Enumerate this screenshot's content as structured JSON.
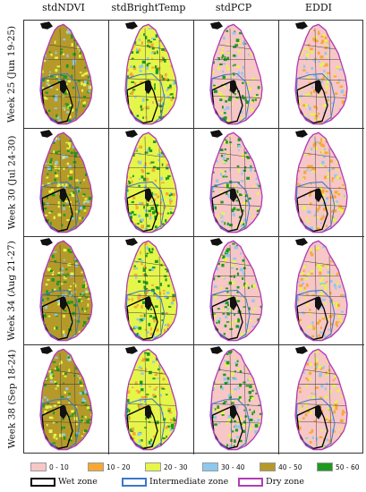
{
  "columns": [
    "stdNDVI",
    "stdBrightTemp",
    "stdPCP",
    "EDDI"
  ],
  "rows": [
    "Week 25 (Jun 19-25)",
    "Week 30 (Jul 24-30)",
    "Week 34 (Aug 21-27)",
    "Week 38 (Sep 18-24)"
  ],
  "legend": {
    "classes": [
      {
        "label": "0 - 10",
        "color": "#f7c6c6"
      },
      {
        "label": "10 - 20",
        "color": "#f7a733"
      },
      {
        "label": "20 - 30",
        "color": "#e6f54a"
      },
      {
        "label": "30 - 40",
        "color": "#8ec8ef"
      },
      {
        "label": "40 - 50",
        "color": "#b59a2a"
      },
      {
        "label": "50 - 60",
        "color": "#1f9a1f"
      }
    ],
    "zones": [
      {
        "label": "Wet zone",
        "color": "#000000"
      },
      {
        "label": "Intermediate zone",
        "color": "#3b78c9"
      },
      {
        "label": "Dry zone",
        "color": "#b23bb8"
      }
    ]
  },
  "map_colors": {
    "0": {
      "base": "#b59a2a",
      "accent": "#1f9a1f",
      "light": "#e6f54a"
    },
    "1": {
      "base": "#e6f54a",
      "accent": "#1f9a1f",
      "light": "#f7a733"
    },
    "2": {
      "base": "#f7c6c6",
      "accent": "#1f9a1f",
      "light": "#e6f54a"
    },
    "3": {
      "base": "#f7c6c6",
      "accent": "#f7a733",
      "light": "#e6f54a"
    }
  }
}
